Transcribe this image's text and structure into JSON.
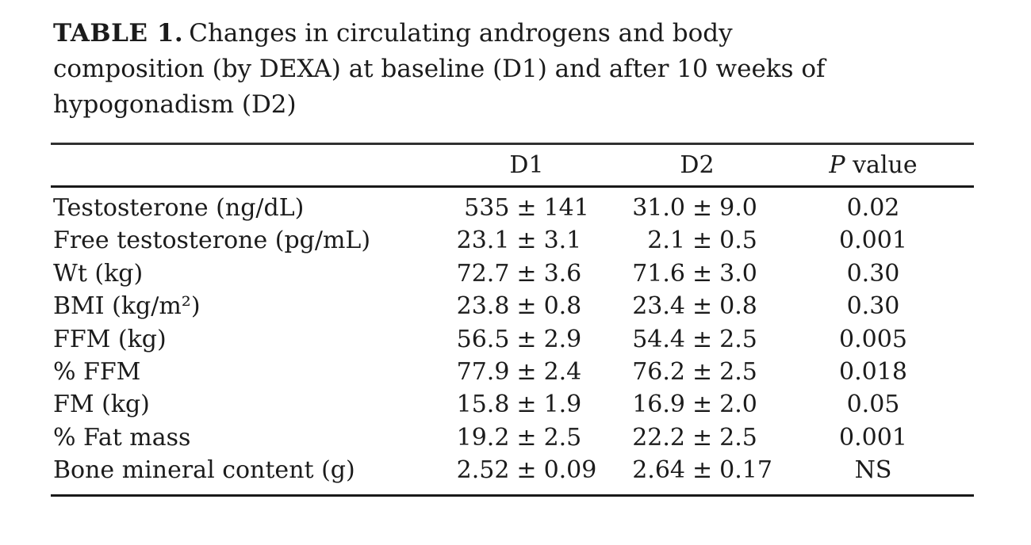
{
  "symbols": {
    "plus_minus": "±"
  },
  "colors": {
    "text": "#1b1b1b",
    "rule": "#191919",
    "background": "#ffffff"
  },
  "title": {
    "bold": "TABLE 1.",
    "line1": "Changes in circulating androgens and body",
    "line2": "composition (by DEXA) at baseline (D1) and after 10 weeks of",
    "line3": "hypogonadism (D2)"
  },
  "table": {
    "headers": {
      "col1": "",
      "d1": "D1",
      "d2": "D2",
      "p_italic": "P",
      "p_rest": "value"
    },
    "rows": [
      {
        "label": "Testosterone (ng/dL)",
        "d1": [
          "535",
          "141"
        ],
        "d2": [
          "31.0",
          "9.0"
        ],
        "p": "0.02"
      },
      {
        "label": "Free testosterone (pg/mL)",
        "d1": [
          "23.1",
          "3.1"
        ],
        "d2": [
          "2.1",
          "0.5"
        ],
        "p": "0.001"
      },
      {
        "label": "Wt (kg)",
        "d1": [
          "72.7",
          "3.6"
        ],
        "d2": [
          "71.6",
          "3.0"
        ],
        "p": "0.30"
      },
      {
        "label": "BMI (kg/m²)",
        "d1": [
          "23.8",
          "0.8"
        ],
        "d2": [
          "23.4",
          "0.8"
        ],
        "p": "0.30"
      },
      {
        "label": "FFM (kg)",
        "d1": [
          "56.5",
          "2.9"
        ],
        "d2": [
          "54.4",
          "2.5"
        ],
        "p": "0.005"
      },
      {
        "label": "% FFM",
        "d1": [
          "77.9",
          "2.4"
        ],
        "d2": [
          "76.2",
          "2.5"
        ],
        "p": "0.018"
      },
      {
        "label": "FM (kg)",
        "d1": [
          "15.8",
          "1.9"
        ],
        "d2": [
          "16.9",
          "2.0"
        ],
        "p": "0.05"
      },
      {
        "label": "% Fat mass",
        "d1": [
          "19.2",
          "2.5"
        ],
        "d2": [
          "22.2",
          "2.5"
        ],
        "p": "0.001"
      },
      {
        "label": "Bone mineral content (g)",
        "d1": [
          "2.52",
          "0.09"
        ],
        "d2": [
          "2.64",
          "0.17"
        ],
        "p": "NS"
      }
    ]
  }
}
